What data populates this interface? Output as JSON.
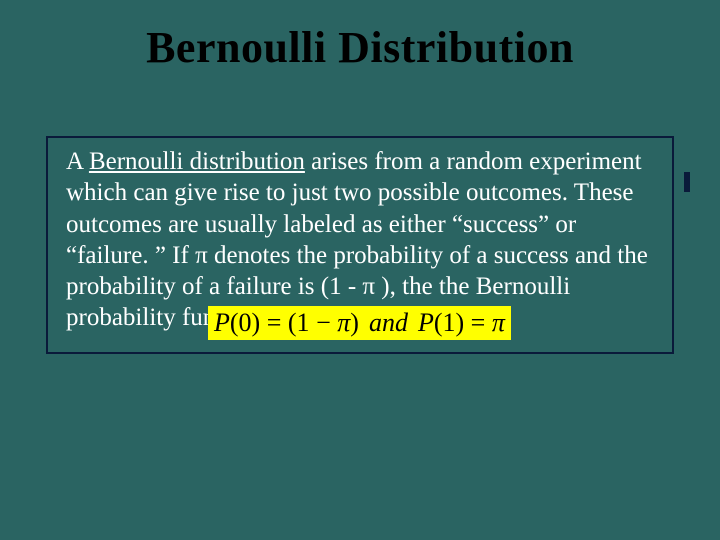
{
  "slide": {
    "background_color": "#2a6462",
    "title": "Bernoulli Distribution",
    "title_color": "#000000",
    "title_fontsize": 44,
    "box": {
      "border_color": "#0a1a3a",
      "text_color": "#ffffff",
      "fontsize": 25,
      "pre": "A ",
      "underlined": "Bernoulli distribution",
      "post": " arises from a random experiment which can give rise to just two possible outcomes.  These outcomes are usually labeled as either “success” or “failure. ”  If π denotes the probability of a success and the probability of a failure is (1 - π ), the the Bernoulli probability function is"
    },
    "formula": {
      "highlight_color": "#ffff00",
      "text_color": "#000000",
      "fontsize": 26,
      "p_label": "P",
      "lhs_arg": "(0)",
      "eq": " = ",
      "rhs1_open": "(1",
      "minus": " − ",
      "pi": "π",
      "rhs1_close": ")",
      "and": "and",
      "lhs2_arg": "(1)",
      "eq2": " = "
    }
  }
}
